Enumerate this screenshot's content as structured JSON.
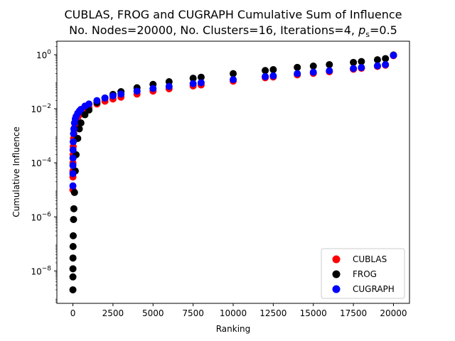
{
  "chart_data": {
    "type": "scatter",
    "title_line1": "CUBLAS, FROG and CUGRAPH Cumulative Sum of Influence",
    "title_line2_prefix": "No. Nodes=20000, No. Clusters=16, Iterations=4, ",
    "title_line2_var": "p",
    "title_line2_sub": "s",
    "title_line2_suffix": "=0.5",
    "xlabel": "Ranking",
    "ylabel": "Cumulative Influence",
    "xlim": [
      -1000,
      21000
    ],
    "ylim_log10": [
      -9.2,
      0.5
    ],
    "y_scale": "log",
    "x_ticks": [
      0,
      2500,
      5000,
      7500,
      10000,
      12500,
      15000,
      17500,
      20000
    ],
    "x_tick_labels": [
      "0",
      "2500",
      "5000",
      "7500",
      "10000",
      "12500",
      "15000",
      "17500",
      "20000"
    ],
    "y_tick_exponents": [
      -8,
      -6,
      -4,
      -2,
      0
    ],
    "y_tick_base": "10",
    "grid": false,
    "legend_position": "lower-right",
    "series": [
      {
        "name": "CUBLAS",
        "color": "#ff0000",
        "x": [
          0,
          1,
          2,
          5,
          10,
          20,
          40,
          60,
          100,
          150,
          200,
          300,
          400,
          500,
          750,
          1000,
          1500,
          2000,
          2500,
          3000,
          4000,
          5000,
          6000,
          7500,
          8000,
          10000,
          12000,
          12500,
          14000,
          15000,
          16000,
          17500,
          18000,
          19000,
          19500,
          20000
        ],
        "y": [
          1e-05,
          3e-05,
          5e-05,
          0.0001,
          0.0002,
          0.0004,
          0.0008,
          0.0012,
          0.002,
          0.0028,
          0.0035,
          0.0048,
          0.006,
          0.007,
          0.009,
          0.011,
          0.015,
          0.019,
          0.023,
          0.027,
          0.035,
          0.045,
          0.055,
          0.07,
          0.076,
          0.105,
          0.14,
          0.15,
          0.18,
          0.205,
          0.235,
          0.29,
          0.315,
          0.37,
          0.41,
          0.92
        ]
      },
      {
        "name": "FROG",
        "color": "#000000",
        "x": [
          0,
          1,
          2,
          5,
          10,
          20,
          40,
          60,
          100,
          150,
          200,
          300,
          400,
          500,
          750,
          1000,
          1500,
          2000,
          2500,
          3000,
          4000,
          5000,
          6000,
          7500,
          8000,
          10000,
          12000,
          12500,
          14000,
          15000,
          16000,
          17500,
          18000,
          19000,
          19500,
          20000
        ],
        "y": [
          2e-09,
          6e-09,
          1.2e-08,
          3e-08,
          8e-08,
          2e-07,
          8e-07,
          2e-06,
          8e-06,
          5e-05,
          0.0002,
          0.0008,
          0.0018,
          0.003,
          0.006,
          0.009,
          0.017,
          0.025,
          0.034,
          0.043,
          0.06,
          0.08,
          0.1,
          0.135,
          0.147,
          0.2,
          0.26,
          0.28,
          0.34,
          0.38,
          0.43,
          0.52,
          0.56,
          0.65,
          0.72,
          0.98
        ]
      },
      {
        "name": "CUGRAPH",
        "color": "#0000ff",
        "x": [
          0,
          1,
          2,
          5,
          10,
          20,
          40,
          60,
          100,
          150,
          200,
          300,
          400,
          500,
          750,
          1000,
          1500,
          2000,
          2500,
          3000,
          4000,
          5000,
          6000,
          7500,
          8000,
          10000,
          12000,
          12500,
          14000,
          15000,
          16000,
          17500,
          18000,
          19000,
          19500,
          20000
        ],
        "y": [
          1.4e-05,
          4e-05,
          8e-05,
          0.00015,
          0.0003,
          0.0006,
          0.0012,
          0.0018,
          0.003,
          0.0042,
          0.0052,
          0.0068,
          0.0082,
          0.0095,
          0.0125,
          0.015,
          0.02,
          0.025,
          0.03,
          0.035,
          0.045,
          0.056,
          0.067,
          0.085,
          0.092,
          0.12,
          0.155,
          0.165,
          0.2,
          0.225,
          0.255,
          0.31,
          0.335,
          0.39,
          0.43,
          0.95
        ]
      }
    ]
  }
}
